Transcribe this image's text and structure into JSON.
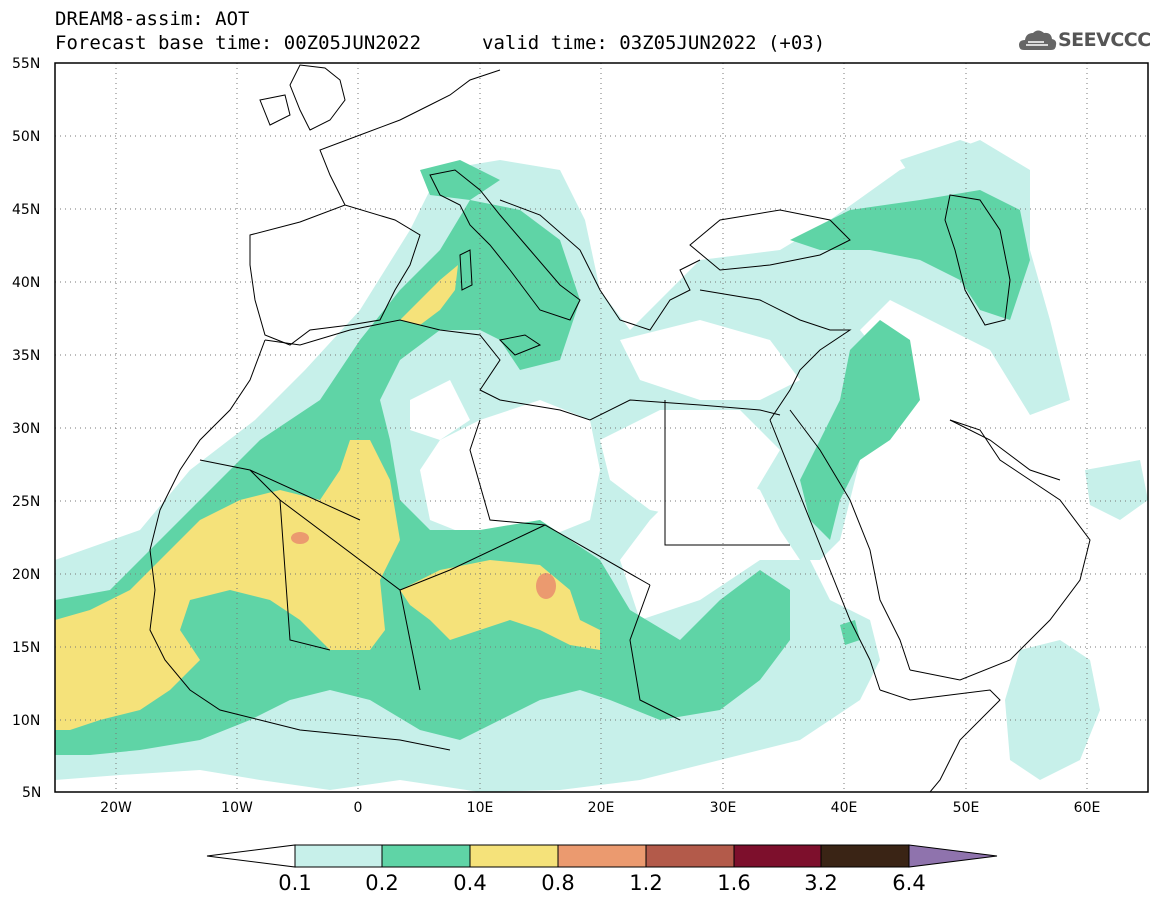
{
  "header": {
    "title": "DREAM8-assim: AOT",
    "base_time": "Forecast base time: 00Z05JUN2022",
    "valid_time": "valid time: 03Z05JUN2022 (+03)"
  },
  "logo": {
    "text": "SEEVCCC",
    "icon": "cloud-icon"
  },
  "map": {
    "lon_range": [
      -25,
      65
    ],
    "lat_range": [
      5,
      55
    ],
    "lat_ticks": [
      {
        "value": 55,
        "label": "55N"
      },
      {
        "value": 50,
        "label": "50N"
      },
      {
        "value": 45,
        "label": "45N"
      },
      {
        "value": 40,
        "label": "40N"
      },
      {
        "value": 35,
        "label": "35N"
      },
      {
        "value": 30,
        "label": "30N"
      },
      {
        "value": 25,
        "label": "25N"
      },
      {
        "value": 20,
        "label": "20N"
      },
      {
        "value": 15,
        "label": "15N"
      },
      {
        "value": 10,
        "label": "10N"
      },
      {
        "value": 5,
        "label": "5N"
      }
    ],
    "lon_ticks": [
      {
        "value": -20,
        "label": "20W"
      },
      {
        "value": -10,
        "label": "10W"
      },
      {
        "value": 0,
        "label": "0"
      },
      {
        "value": 10,
        "label": "10E"
      },
      {
        "value": 20,
        "label": "20E"
      },
      {
        "value": 30,
        "label": "30E"
      },
      {
        "value": 40,
        "label": "40E"
      },
      {
        "value": 50,
        "label": "50E"
      },
      {
        "value": 60,
        "label": "60E"
      }
    ],
    "grid": "dotted"
  },
  "colorbar": {
    "labels": [
      "0.1",
      "0.2",
      "0.4",
      "0.8",
      "1.2",
      "1.6",
      "3.2",
      "6.4"
    ],
    "colors": [
      "#c7f0ea",
      "#5fd4a6",
      "#f5e27a",
      "#eb9a6f",
      "#b35a4a",
      "#7d0f2c",
      "#3a2415"
    ],
    "under_color": "#ffffff",
    "over_color": "#8f73ad"
  },
  "colors": {
    "level1": "#c7f0ea",
    "level2": "#5fd4a6",
    "level3": "#f5e27a",
    "level4": "#eb9a6f",
    "border": "#000000"
  }
}
